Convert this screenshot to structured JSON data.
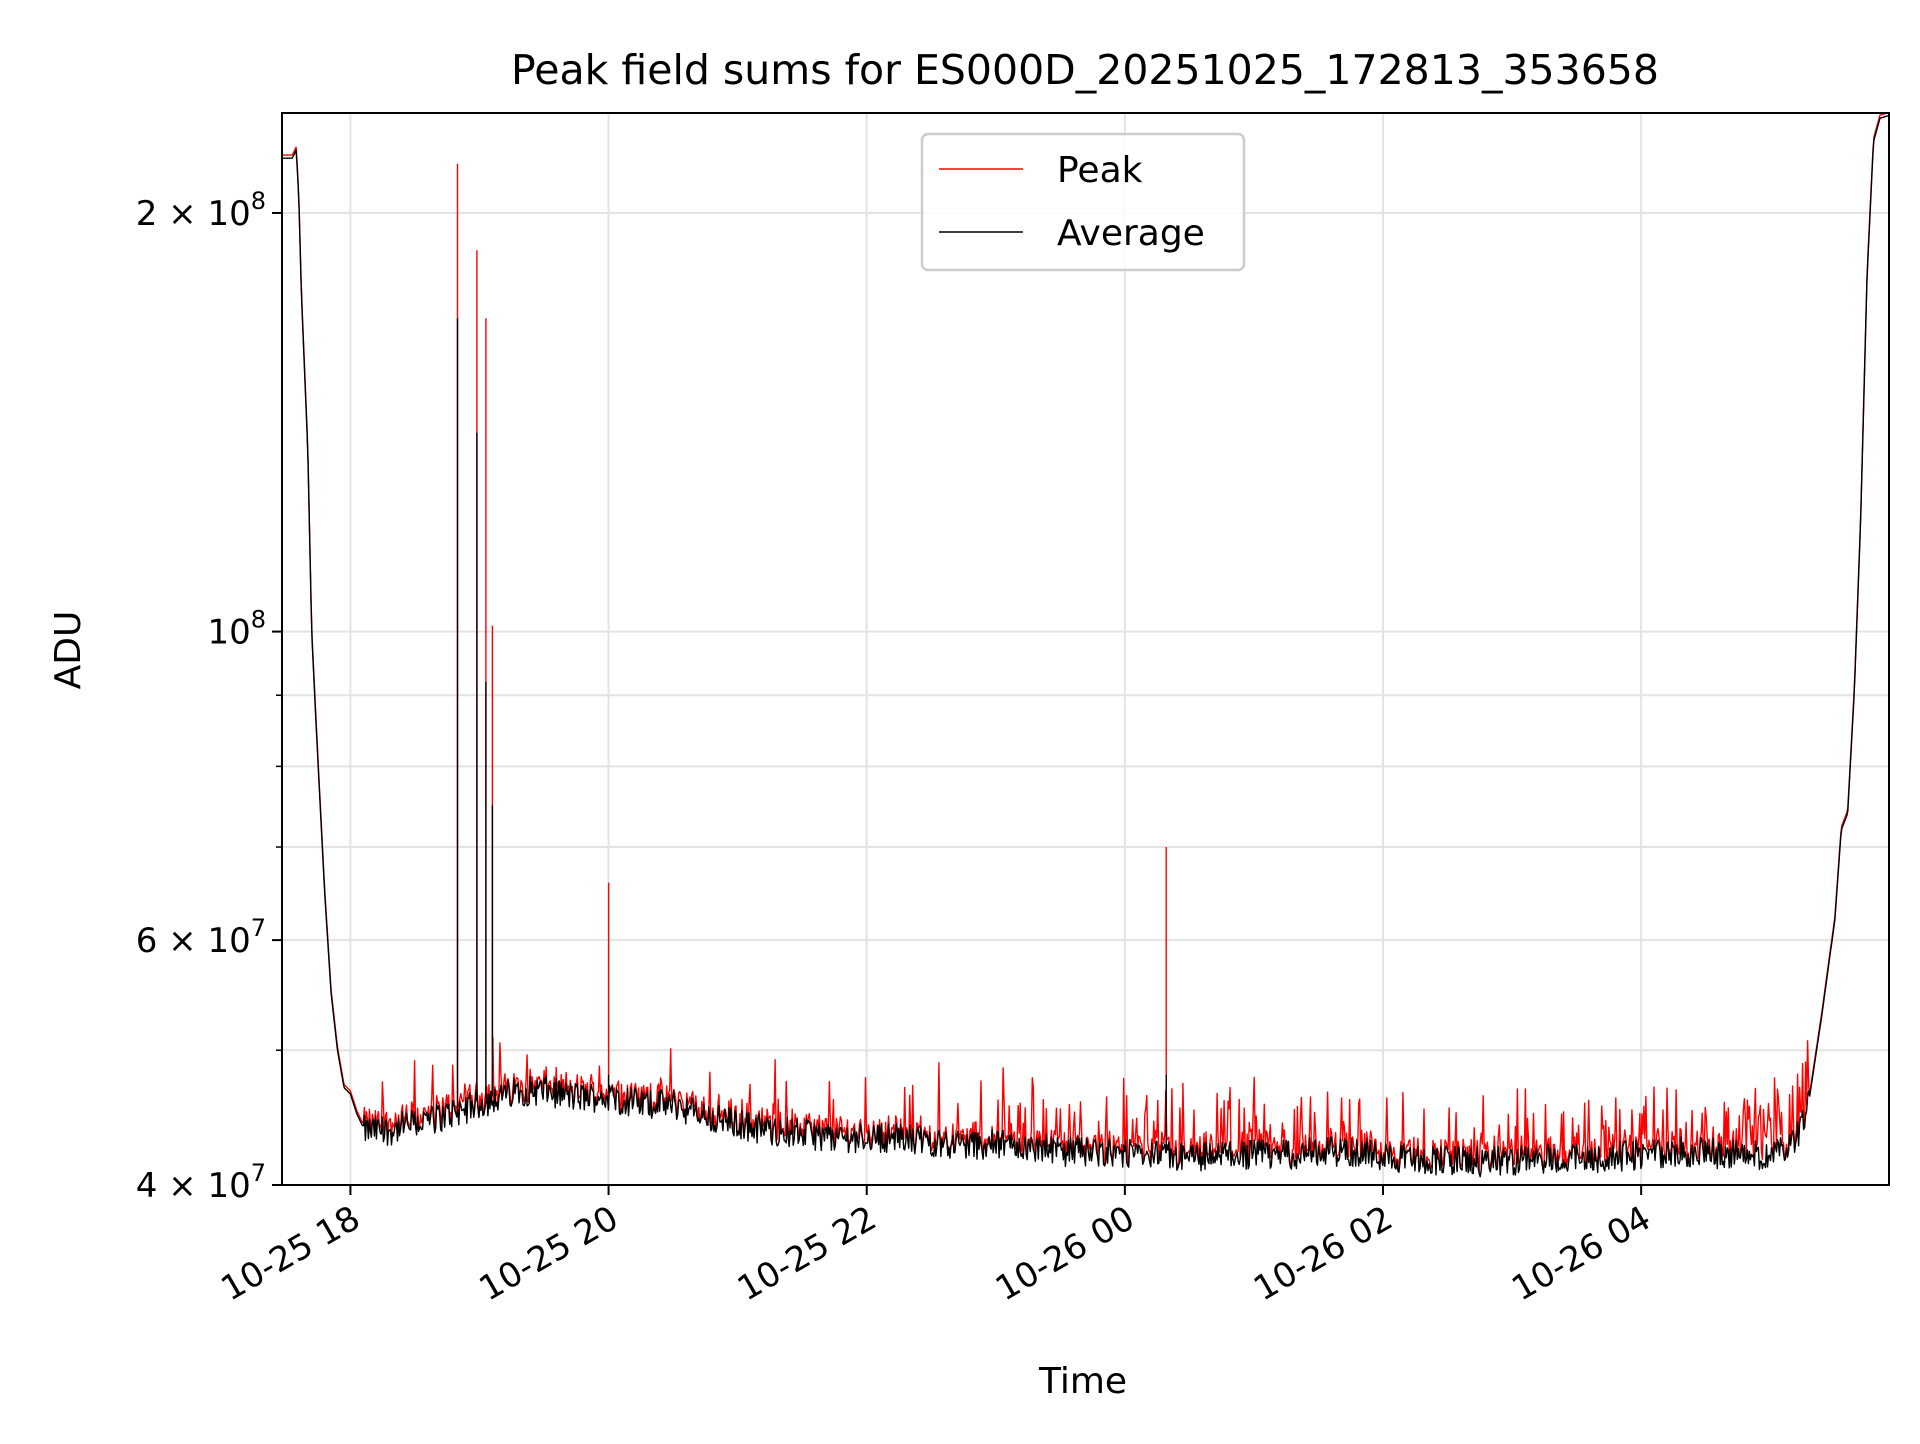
{
  "chart_data": {
    "type": "line",
    "title": "Peak field sums for ES000D_20251025_172813_353658",
    "xlabel": "Time",
    "ylabel": "ADU",
    "yscale": "log",
    "ylim": [
      40000000,
      236000000
    ],
    "xlim_hours": [
      -0.53,
      11.92
    ],
    "grid": true,
    "legend_position": "upper center",
    "legend": [
      "Peak",
      "Average"
    ],
    "x_ticks": [
      {
        "label": "10-25 18",
        "hours": 0
      },
      {
        "label": "10-25 20",
        "hours": 2
      },
      {
        "label": "10-25 22",
        "hours": 4
      },
      {
        "label": "10-26 00",
        "hours": 6
      },
      {
        "label": "10-26 02",
        "hours": 8
      },
      {
        "label": "10-26 04",
        "hours": 10
      }
    ],
    "y_ticks": [
      {
        "base": "4 × 10",
        "exp": "7",
        "value": 40000000
      },
      {
        "base": "6 × 10",
        "exp": "7",
        "value": 60000000
      },
      {
        "base": "10",
        "exp": "8",
        "value": 100000000
      },
      {
        "base": "2 × 10",
        "exp": "8",
        "value": 200000000
      }
    ],
    "y_minor_values": [
      50000000,
      70000000,
      80000000,
      90000000
    ],
    "series": [
      {
        "name": "Average",
        "color": "#000000",
        "hours": [
          -0.53,
          -0.45,
          -0.42,
          -0.4,
          -0.38,
          -0.33,
          -0.3,
          -0.25,
          -0.2,
          -0.15,
          -0.1,
          -0.05,
          0.0,
          0.05,
          0.1,
          0.2,
          0.3,
          0.5,
          0.7,
          0.85,
          1.0,
          1.15,
          1.3,
          1.5,
          1.75,
          2.0,
          2.25,
          2.5,
          2.75,
          3.0,
          3.25,
          3.5,
          3.75,
          4.0,
          4.25,
          4.5,
          4.75,
          5.0,
          5.25,
          5.5,
          5.75,
          6.0,
          6.25,
          6.5,
          6.75,
          7.0,
          7.25,
          7.5,
          7.75,
          8.0,
          8.25,
          8.5,
          8.75,
          9.0,
          9.25,
          9.5,
          9.75,
          10.0,
          10.25,
          10.5,
          10.75,
          11.0,
          11.1,
          11.2,
          11.3,
          11.4,
          11.5,
          11.55,
          11.6,
          11.65,
          11.7,
          11.75,
          11.8,
          11.85,
          11.92
        ],
        "values": [
          219000000,
          219000000,
          222000000,
          205000000,
          175000000,
          135000000,
          100000000,
          80000000,
          65000000,
          55000000,
          50000000,
          47000000,
          46500000,
          45000000,
          44000000,
          44000000,
          44000000,
          44500000,
          45000000,
          45500000,
          46000000,
          46500000,
          47000000,
          47000000,
          46500000,
          46500000,
          46000000,
          46000000,
          45000000,
          44500000,
          44000000,
          43800000,
          43500000,
          43500000,
          43500000,
          43200000,
          43000000,
          43000000,
          42800000,
          42500000,
          42500000,
          42300000,
          42200000,
          42100000,
          42200000,
          42300000,
          42300000,
          42500000,
          42500000,
          42200000,
          42000000,
          41900000,
          41800000,
          41800000,
          42000000,
          42000000,
          42100000,
          42300000,
          42500000,
          42400000,
          42300000,
          42300000,
          42700000,
          43500000,
          46000000,
          53000000,
          62000000,
          72000000,
          74000000,
          90000000,
          120000000,
          180000000,
          225000000,
          234000000,
          235000000
        ],
        "spikes": [
          [
            0.83,
            168000000
          ],
          [
            0.98,
            139000000
          ],
          [
            1.05,
            92000000
          ],
          [
            1.1,
            75000000
          ],
          [
            2.0,
            48000000
          ],
          [
            6.32,
            48000000
          ]
        ]
      },
      {
        "name": "Peak",
        "color": "#ff0000",
        "spikes": [
          [
            0.83,
            217000000
          ],
          [
            0.98,
            188000000
          ],
          [
            1.05,
            168000000
          ],
          [
            1.1,
            101000000
          ],
          [
            2.0,
            66000000
          ],
          [
            6.32,
            70000000
          ]
        ]
      }
    ]
  }
}
